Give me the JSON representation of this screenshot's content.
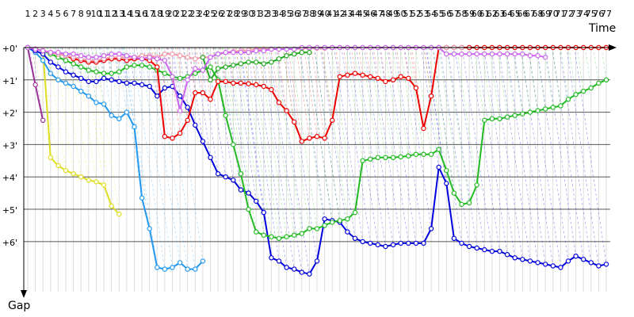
{
  "chart_data": {
    "type": "line",
    "title": "",
    "xlabel": "Time",
    "ylabel": "Gap",
    "x_ticks": [
      "1",
      "2",
      "3",
      "4",
      "5",
      "6",
      "7",
      "8",
      "9",
      "10",
      "11",
      "12",
      "13",
      "14",
      "15",
      "16",
      "17",
      "18",
      "19",
      "20",
      "21",
      "22",
      "23",
      "24",
      "25",
      "26",
      "27",
      "28",
      "29",
      "30",
      "31",
      "32",
      "33",
      "34",
      "35",
      "36",
      "37",
      "38",
      "39",
      "40",
      "41",
      "42",
      "43",
      "44",
      "45",
      "46",
      "47",
      "48",
      "49",
      "50",
      "51",
      "52",
      "53",
      "54",
      "55",
      "56",
      "57",
      "58",
      "59",
      "60",
      "61",
      "62",
      "63",
      "64",
      "65",
      "66",
      "67",
      "68",
      "69",
      "70",
      "71",
      "72",
      "73",
      "74",
      "75",
      "76",
      "77"
    ],
    "y_ticks": [
      "+0'",
      "+1'",
      "+2'",
      "+3'",
      "+4'",
      "+5'",
      "+6'"
    ],
    "xlim": [
      1,
      77
    ],
    "ylim": [
      0,
      7.4
    ],
    "y_inverted": true,
    "grid": true,
    "legend": "none",
    "series": [
      {
        "color": "#993399",
        "x": [
          1,
          2,
          3
        ],
        "y": [
          0,
          1.15,
          2.25
        ]
      },
      {
        "color": "#dddd22",
        "x": [
          1,
          2,
          3,
          4,
          5,
          6,
          7,
          8,
          9,
          10,
          11,
          12,
          13
        ],
        "y": [
          0,
          0.05,
          0.1,
          3.4,
          3.65,
          3.8,
          3.9,
          4.0,
          4.1,
          4.15,
          4.25,
          4.9,
          5.15
        ]
      },
      {
        "color": "#2299ee",
        "x": [
          1,
          2,
          3,
          4,
          5,
          6,
          7,
          8,
          9,
          10,
          11,
          12,
          13,
          14,
          15,
          16,
          17,
          18,
          19,
          20,
          21,
          22,
          23,
          24
        ],
        "y": [
          0,
          0.15,
          0.4,
          0.8,
          1.0,
          1.1,
          1.2,
          1.35,
          1.5,
          1.7,
          1.75,
          2.1,
          2.2,
          2.0,
          2.45,
          4.65,
          5.6,
          6.8,
          6.85,
          6.8,
          6.65,
          6.85,
          6.85,
          6.6
        ]
      },
      {
        "color": "#0000dd",
        "x": [
          1,
          2,
          3,
          4,
          5,
          6,
          7,
          8,
          9,
          10,
          11,
          12,
          13,
          14,
          15,
          16,
          17,
          18,
          19,
          20,
          21,
          22,
          23,
          24,
          25,
          26,
          27,
          28,
          29,
          30,
          31,
          32,
          33,
          34,
          35,
          36,
          37,
          38,
          39,
          40,
          41,
          42,
          43,
          44,
          45,
          46,
          47,
          48,
          49,
          50,
          51,
          52,
          53,
          54,
          55,
          56,
          57,
          58,
          59,
          60,
          61,
          62,
          63,
          64,
          65,
          66,
          67,
          68,
          69,
          70,
          71,
          72,
          73,
          74,
          75,
          76,
          77
        ],
        "y": [
          0,
          0.1,
          0.2,
          0.45,
          0.6,
          0.75,
          0.85,
          0.95,
          1.05,
          1.05,
          0.95,
          1.0,
          1.05,
          1.1,
          1.1,
          1.15,
          1.2,
          1.5,
          1.25,
          1.2,
          1.5,
          1.85,
          2.4,
          2.9,
          3.4,
          3.9,
          4.0,
          4.1,
          4.4,
          4.5,
          4.75,
          5.1,
          6.5,
          6.6,
          6.8,
          6.85,
          6.95,
          7.0,
          6.6,
          5.3,
          5.35,
          5.4,
          5.7,
          5.9,
          6.0,
          6.05,
          6.1,
          6.15,
          6.1,
          6.05,
          6.05,
          6.05,
          6.05,
          5.6,
          3.7,
          4.2,
          5.9,
          6.05,
          6.15,
          6.2,
          6.25,
          6.3,
          6.3,
          6.4,
          6.5,
          6.55,
          6.6,
          6.65,
          6.7,
          6.75,
          6.8,
          6.6,
          6.45,
          6.55,
          6.65,
          6.75,
          6.7
        ]
      },
      {
        "color": "#22bb22",
        "x": [
          1,
          2,
          3,
          4,
          5,
          6,
          7,
          8,
          9,
          10,
          11,
          12,
          13,
          14,
          15,
          16,
          17,
          18,
          19,
          20,
          21,
          22,
          23,
          24,
          25,
          26,
          27,
          28,
          29,
          30,
          31,
          32,
          33,
          34,
          35,
          36,
          37,
          38,
          39,
          40,
          41,
          42,
          43,
          44,
          45,
          46,
          47,
          48,
          49,
          50,
          51,
          52,
          53,
          54,
          55,
          56,
          57,
          58,
          59,
          60,
          61,
          62,
          63,
          64,
          65,
          66,
          67,
          68,
          69,
          70,
          71,
          72,
          73,
          74,
          75,
          76,
          77
        ],
        "y": [
          0,
          0.05,
          0.1,
          0.2,
          0.3,
          0.4,
          0.5,
          0.6,
          0.7,
          0.75,
          0.8,
          0.8,
          0.75,
          0.6,
          0.55,
          0.55,
          0.6,
          0.7,
          0.8,
          0.9,
          0.95,
          0.9,
          0.8,
          0.7,
          0.6,
          1.0,
          2.1,
          3.0,
          3.9,
          5.0,
          5.7,
          5.8,
          5.85,
          5.9,
          5.85,
          5.8,
          5.75,
          5.6,
          5.6,
          5.5,
          5.4,
          5.35,
          5.3,
          5.1,
          3.5,
          3.45,
          3.4,
          3.4,
          3.4,
          3.38,
          3.35,
          3.3,
          3.3,
          3.3,
          3.15,
          3.8,
          4.5,
          4.85,
          4.8,
          4.25,
          2.25,
          2.2,
          2.2,
          2.15,
          2.1,
          2.05,
          2.0,
          1.95,
          1.9,
          1.85,
          1.8,
          1.6,
          1.45,
          1.35,
          1.25,
          1.1,
          1.0
        ]
      },
      {
        "color": "#ee0000",
        "x": [
          1,
          2,
          3,
          4,
          5,
          6,
          7,
          8,
          9,
          10,
          11,
          12,
          13,
          14,
          15,
          16,
          17,
          18,
          19,
          20,
          21,
          22,
          23,
          24,
          25,
          26,
          27,
          28,
          29,
          30,
          31,
          32,
          33,
          34,
          35,
          36,
          37,
          38,
          39,
          40,
          41,
          42,
          43,
          44,
          45,
          46,
          47,
          48,
          49,
          50,
          51,
          52,
          53,
          54,
          55,
          56,
          57,
          58,
          59,
          60,
          61,
          62,
          63,
          64,
          65,
          66,
          67,
          68,
          69,
          70,
          71,
          72,
          73,
          74,
          75,
          76,
          77
        ],
        "y": [
          0,
          0.05,
          0.1,
          0.15,
          0.2,
          0.25,
          0.35,
          0.4,
          0.45,
          0.45,
          0.4,
          0.35,
          0.35,
          0.4,
          0.35,
          0.35,
          0.4,
          0.6,
          2.75,
          2.8,
          2.65,
          2.25,
          1.4,
          1.4,
          1.6,
          1.05,
          1.05,
          1.1,
          1.1,
          1.12,
          1.15,
          1.2,
          1.3,
          1.7,
          1.95,
          2.3,
          2.9,
          2.8,
          2.75,
          2.8,
          2.25,
          0.9,
          0.85,
          0.8,
          0.85,
          0.9,
          0.95,
          1.05,
          1.0,
          0.9,
          0.95,
          1.25,
          2.5,
          1.5,
          0,
          0,
          0,
          0,
          0,
          0,
          0,
          0,
          0,
          0,
          0,
          0,
          0,
          0,
          0,
          0,
          0,
          0,
          0,
          0,
          0,
          0,
          0
        ]
      },
      {
        "color": "#f09aaa",
        "x": [
          1,
          2,
          3,
          4,
          5,
          6,
          7,
          8,
          9,
          10,
          11,
          12,
          13,
          14,
          15,
          16,
          17,
          18,
          19,
          20,
          21,
          22,
          23,
          24,
          25,
          26,
          27,
          28,
          29,
          30,
          31,
          32,
          33,
          34,
          35,
          36,
          37,
          38,
          39,
          40,
          41,
          42,
          43,
          44,
          45,
          46,
          47,
          48,
          49,
          50,
          51,
          52,
          53,
          54,
          55,
          56,
          57,
          58
        ],
        "y": [
          0,
          0.05,
          0.1,
          0.15,
          0.2,
          0.25,
          0.3,
          0.35,
          0.4,
          0.4,
          0.35,
          0.3,
          0.3,
          0.3,
          0.3,
          0.25,
          0.25,
          0.3,
          0.2,
          0.2,
          0.25,
          0.3,
          0.35,
          0.3,
          0.3,
          0.2,
          0.15,
          0.12,
          0.1,
          0.08,
          0.05,
          0.05,
          0.05,
          0.05,
          0.05,
          0.05,
          0.03,
          0.02,
          0.02,
          0.02,
          0,
          0,
          0,
          0,
          0,
          0,
          0,
          0,
          0,
          0,
          0,
          0,
          0,
          0,
          0,
          0,
          0,
          0
        ]
      },
      {
        "color": "#22aa22",
        "x": [
          24,
          25,
          26,
          27,
          28,
          29,
          30,
          31,
          32,
          33,
          34,
          35,
          36,
          37,
          38
        ],
        "y": [
          0.3,
          1.0,
          0.65,
          0.6,
          0.55,
          0.5,
          0.45,
          0.45,
          0.5,
          0.45,
          0.35,
          0.25,
          0.2,
          0.15,
          0.15
        ]
      },
      {
        "color": "#cc66ee",
        "x": [
          1,
          2,
          3,
          4,
          5,
          6,
          7,
          8,
          9,
          10,
          11,
          12,
          13,
          14,
          15,
          16,
          17,
          18,
          19,
          20,
          21,
          22,
          23,
          24,
          25,
          26,
          27,
          28,
          29,
          30,
          31,
          32,
          33,
          34,
          35,
          36,
          37,
          38,
          39,
          40,
          41,
          42,
          43,
          44,
          45,
          46,
          47,
          48,
          49,
          50,
          51,
          52,
          53,
          54,
          55,
          56,
          57,
          58,
          59,
          60,
          61,
          62,
          63,
          64,
          65,
          66,
          67,
          68,
          69
        ],
        "y": [
          0,
          0.05,
          0.1,
          0.15,
          0.15,
          0.2,
          0.2,
          0.25,
          0.3,
          0.3,
          0.25,
          0.2,
          0.2,
          0.25,
          0.3,
          0.35,
          0.3,
          0.35,
          0.4,
          0.9,
          1.95,
          1.0,
          0.65,
          0.7,
          0.3,
          0.2,
          0.15,
          0.15,
          0.15,
          0.15,
          0.1,
          0.1,
          0.05,
          0.05,
          0.05,
          0.05,
          0,
          0,
          0,
          0,
          0,
          0,
          0,
          0,
          0,
          0,
          0,
          0,
          0,
          0,
          0,
          0,
          0,
          0,
          0,
          0.2,
          0.2,
          0.2,
          0.2,
          0.2,
          0.2,
          0.2,
          0.2,
          0.2,
          0.2,
          0.2,
          0.25,
          0.25,
          0.3
        ]
      }
    ]
  }
}
